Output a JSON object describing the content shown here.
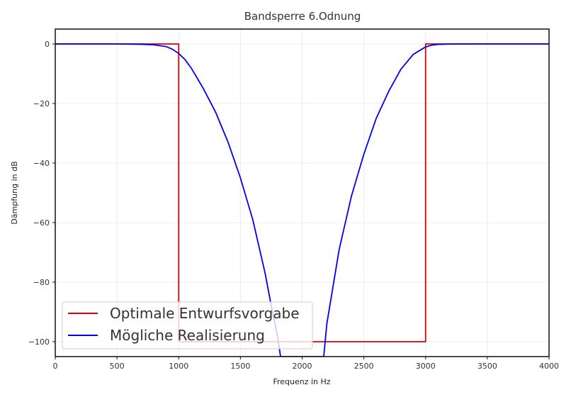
{
  "chart_data": {
    "type": "line",
    "title": "Bandsperre 6.Odnung",
    "xlabel": "Frequenz in Hz",
    "ylabel": "Dämpfung in dB",
    "xlim": [
      0,
      4000
    ],
    "ylim": [
      -105,
      5
    ],
    "xticks": [
      0,
      500,
      1000,
      1500,
      2000,
      2500,
      3000,
      3500,
      4000
    ],
    "yticks": [
      0,
      -20,
      -40,
      -60,
      -80,
      -100
    ],
    "xtick_labels": [
      "0",
      "500",
      "1000",
      "1500",
      "2000",
      "2500",
      "3000",
      "3500",
      "4000"
    ],
    "ytick_labels": [
      "0",
      "−20",
      "−40",
      "−60",
      "−80",
      "−100"
    ],
    "grid": true,
    "legend_position": "lower-left",
    "series": [
      {
        "name": "Optimale Entwurfsvorgabe",
        "color": "#e00000",
        "x": [
          0,
          1000,
          1000,
          3000,
          3000,
          4000
        ],
        "y": [
          0,
          0,
          -100,
          -100,
          0,
          0
        ]
      },
      {
        "name": "Mögliche Realisierung",
        "color": "#0000ee",
        "x": [
          0,
          500,
          700,
          800,
          900,
          950,
          1000,
          1050,
          1100,
          1200,
          1300,
          1400,
          1500,
          1600,
          1700,
          1750,
          1800,
          1825,
          2175,
          2200,
          2300,
          2400,
          2500,
          2600,
          2700,
          2800,
          2900,
          3000,
          3050,
          3100,
          3200,
          3400,
          4000
        ],
        "y": [
          0,
          0,
          -0.1,
          -0.3,
          -0.9,
          -1.8,
          -3.2,
          -5.2,
          -8,
          -15,
          -23,
          -33,
          -45,
          -59,
          -77,
          -88,
          -98,
          -105,
          -105,
          -94,
          -69,
          -51,
          -37,
          -25,
          -16,
          -8.5,
          -3.5,
          -1,
          -0.4,
          -0.15,
          -0.03,
          0,
          0
        ]
      }
    ]
  }
}
